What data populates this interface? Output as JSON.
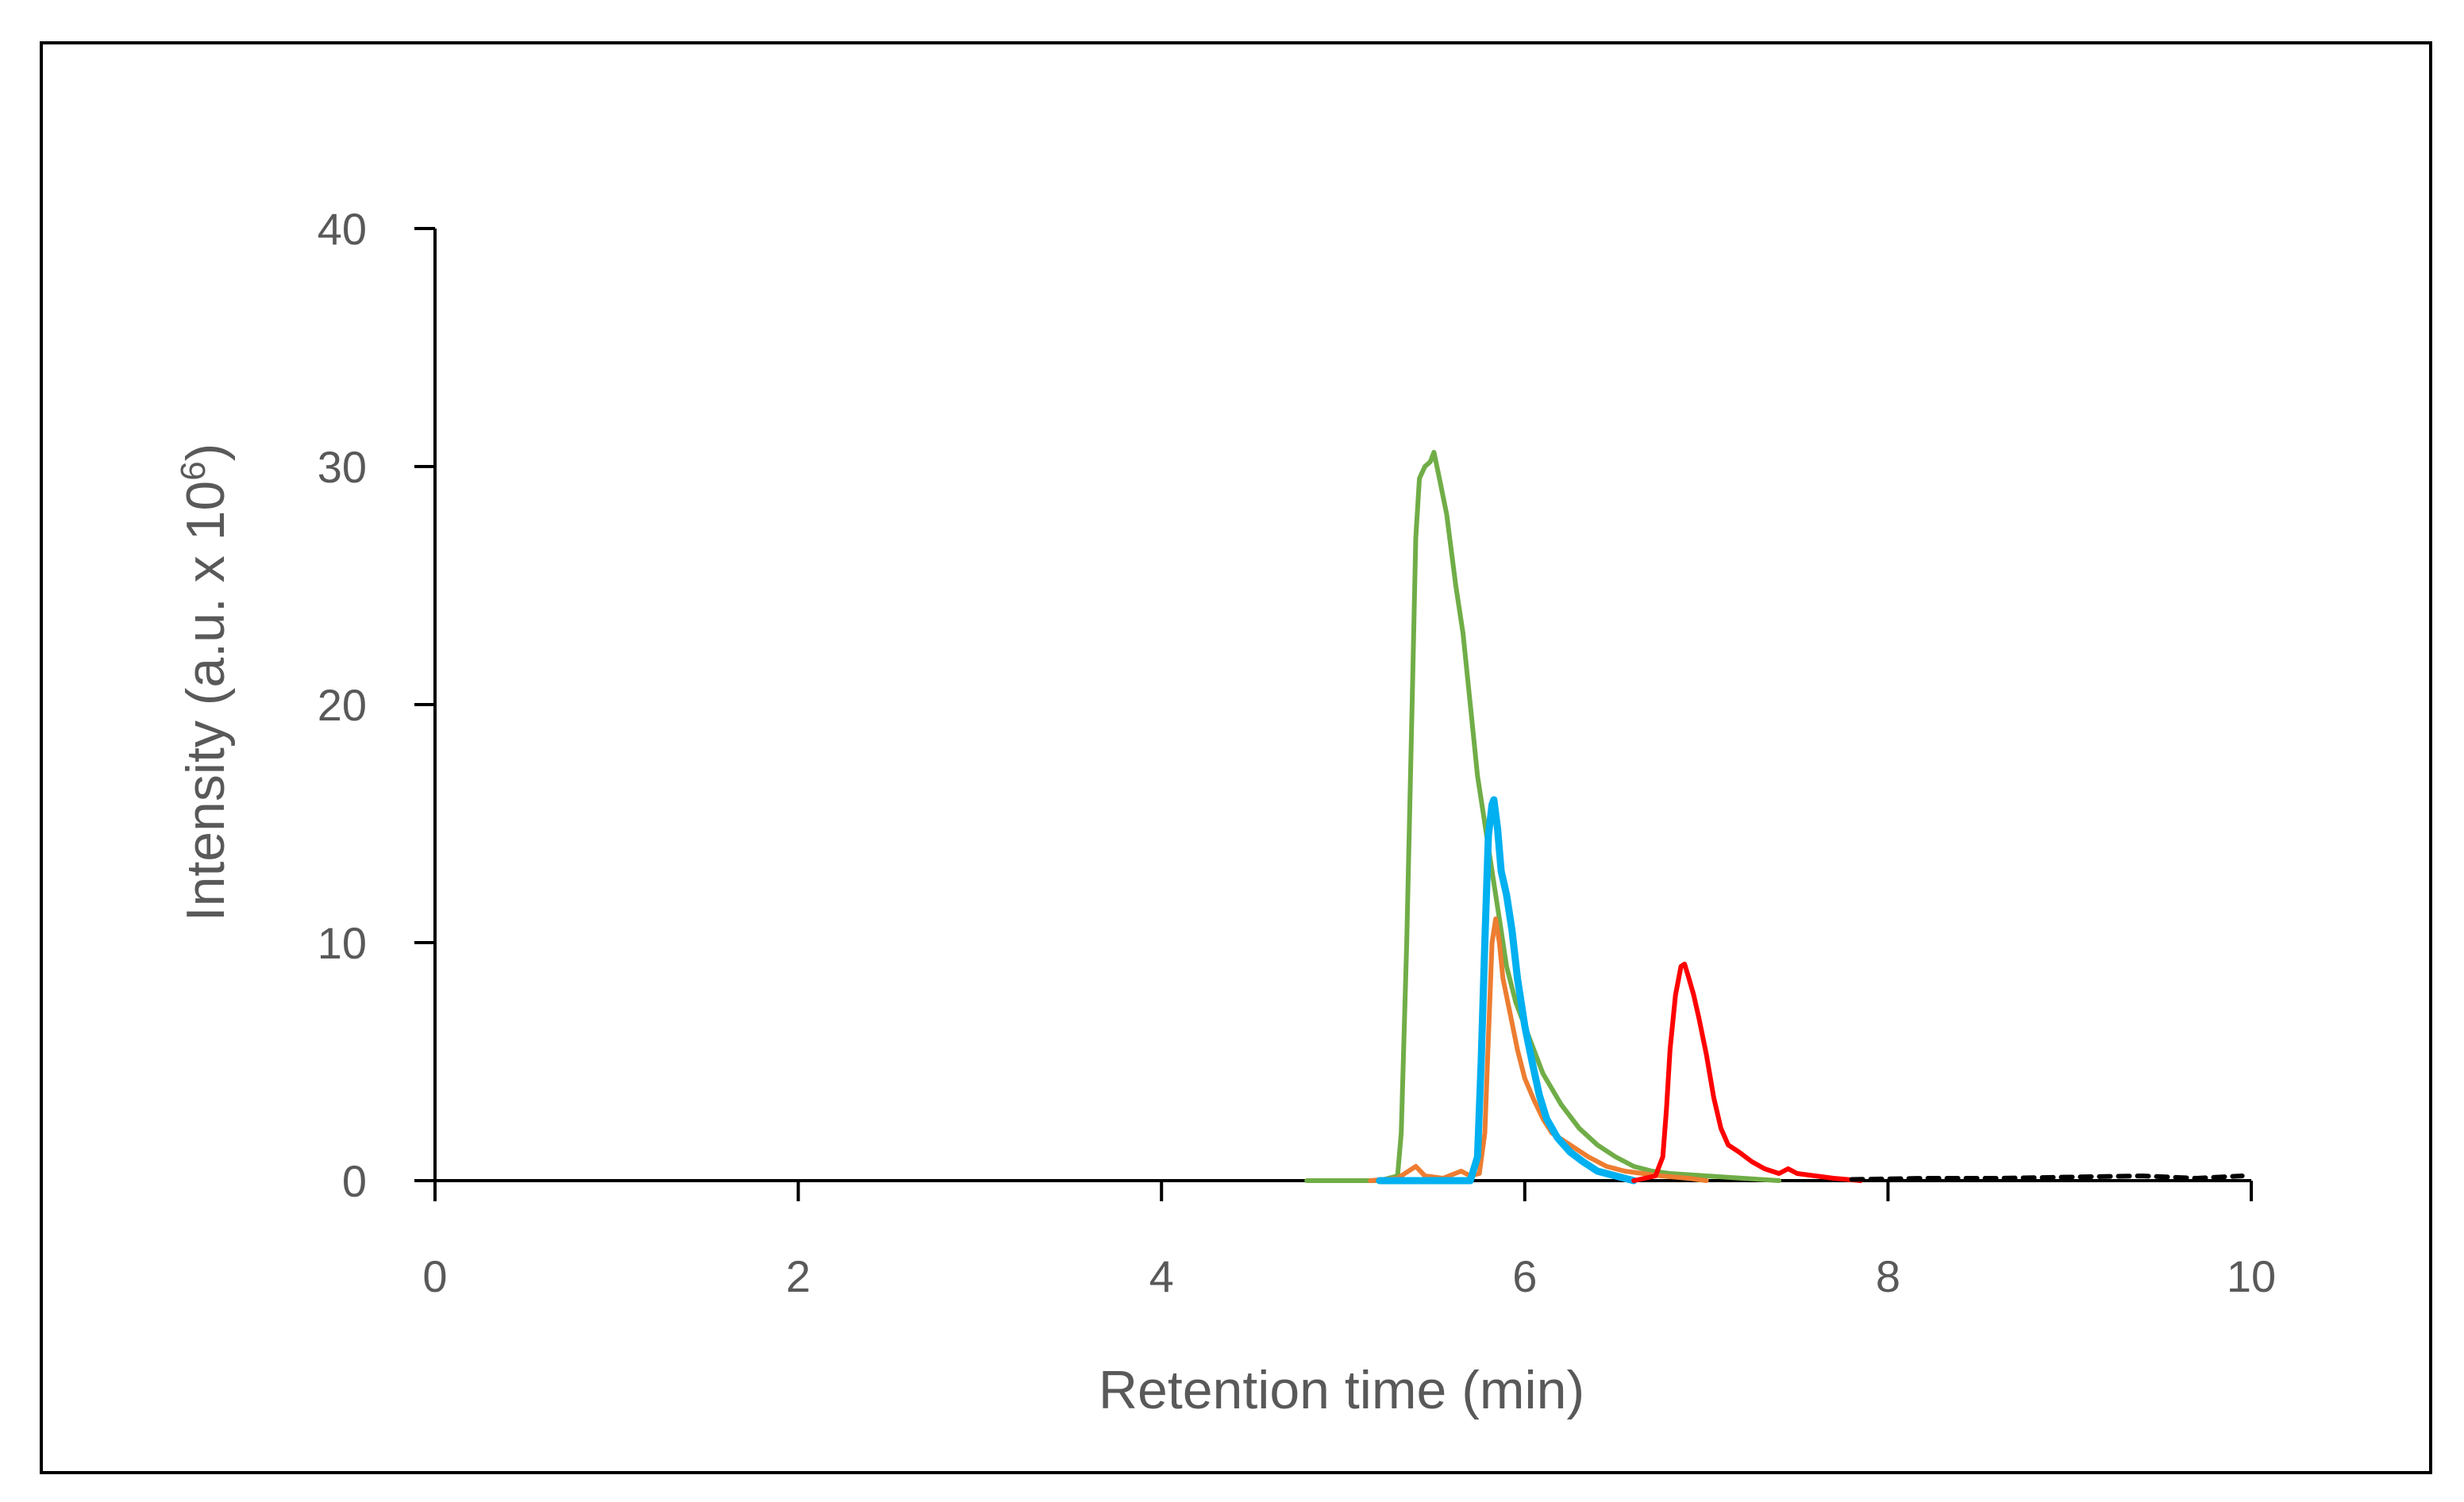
{
  "chart_data": {
    "type": "line",
    "xlabel": "Retention time (min)",
    "ylabel_main": "Intensity (a.u. x 10",
    "ylabel_sup": "6",
    "ylabel_end": ")",
    "xlim": [
      0,
      10
    ],
    "ylim": [
      0,
      40
    ],
    "x_ticks": [
      0,
      2,
      4,
      6,
      8,
      10
    ],
    "y_ticks": [
      0,
      10,
      20,
      30,
      40
    ],
    "grid": false,
    "legend": "none",
    "series": [
      {
        "color": "#70ad47",
        "points": [
          [
            4.8,
            0
          ],
          [
            5.2,
            0
          ],
          [
            5.3,
            0.2
          ],
          [
            5.32,
            2
          ],
          [
            5.35,
            10
          ],
          [
            5.38,
            20
          ],
          [
            5.4,
            27
          ],
          [
            5.42,
            29.5
          ],
          [
            5.45,
            30
          ],
          [
            5.48,
            30.2
          ],
          [
            5.5,
            30.6
          ],
          [
            5.53,
            29.5
          ],
          [
            5.57,
            28
          ],
          [
            5.62,
            25
          ],
          [
            5.66,
            23
          ],
          [
            5.7,
            20
          ],
          [
            5.74,
            17
          ],
          [
            5.78,
            15
          ],
          [
            5.82,
            13
          ],
          [
            5.86,
            11
          ],
          [
            5.9,
            9
          ],
          [
            5.95,
            7.5
          ],
          [
            6.0,
            6.5
          ],
          [
            6.05,
            5.5
          ],
          [
            6.1,
            4.5
          ],
          [
            6.2,
            3.2
          ],
          [
            6.3,
            2.2
          ],
          [
            6.4,
            1.5
          ],
          [
            6.5,
            1.0
          ],
          [
            6.6,
            0.6
          ],
          [
            6.7,
            0.4
          ],
          [
            6.8,
            0.3
          ],
          [
            7.0,
            0.2
          ],
          [
            7.2,
            0.1
          ],
          [
            7.4,
            0
          ]
        ]
      },
      {
        "color": "#ed7d31",
        "points": [
          [
            5.15,
            0
          ],
          [
            5.3,
            0.1
          ],
          [
            5.4,
            0.6
          ],
          [
            5.45,
            0.2
          ],
          [
            5.55,
            0.1
          ],
          [
            5.65,
            0.4
          ],
          [
            5.7,
            0.2
          ],
          [
            5.75,
            0.3
          ],
          [
            5.78,
            2
          ],
          [
            5.8,
            6
          ],
          [
            5.82,
            10
          ],
          [
            5.84,
            11
          ],
          [
            5.86,
            10
          ],
          [
            5.88,
            8.5
          ],
          [
            5.92,
            7
          ],
          [
            5.96,
            5.5
          ],
          [
            6.0,
            4.3
          ],
          [
            6.05,
            3.4
          ],
          [
            6.1,
            2.6
          ],
          [
            6.15,
            2.0
          ],
          [
            6.25,
            1.5
          ],
          [
            6.35,
            1.0
          ],
          [
            6.45,
            0.6
          ],
          [
            6.55,
            0.4
          ],
          [
            6.65,
            0.3
          ],
          [
            6.75,
            0.2
          ],
          [
            6.9,
            0.1
          ],
          [
            7.0,
            0
          ]
        ]
      },
      {
        "color": "#00b0f0",
        "points": [
          [
            5.2,
            0
          ],
          [
            5.5,
            0
          ],
          [
            5.7,
            0
          ],
          [
            5.74,
            1
          ],
          [
            5.76,
            5
          ],
          [
            5.78,
            10
          ],
          [
            5.8,
            14.5
          ],
          [
            5.82,
            15.8
          ],
          [
            5.83,
            16
          ],
          [
            5.85,
            14.8
          ],
          [
            5.87,
            13
          ],
          [
            5.9,
            12
          ],
          [
            5.93,
            10.5
          ],
          [
            5.96,
            8.5
          ],
          [
            6.0,
            6.5
          ],
          [
            6.04,
            5
          ],
          [
            6.08,
            3.6
          ],
          [
            6.12,
            2.6
          ],
          [
            6.18,
            1.8
          ],
          [
            6.25,
            1.2
          ],
          [
            6.32,
            0.8
          ],
          [
            6.4,
            0.4
          ],
          [
            6.5,
            0.2
          ],
          [
            6.6,
            0
          ]
        ]
      },
      {
        "color": "#ff0000",
        "points": [
          [
            6.6,
            0
          ],
          [
            6.72,
            0.2
          ],
          [
            6.76,
            1
          ],
          [
            6.78,
            3
          ],
          [
            6.8,
            5.5
          ],
          [
            6.83,
            7.8
          ],
          [
            6.86,
            9.0
          ],
          [
            6.88,
            9.1
          ],
          [
            6.9,
            8.6
          ],
          [
            6.93,
            7.8
          ],
          [
            6.96,
            6.8
          ],
          [
            7.0,
            5.3
          ],
          [
            7.04,
            3.5
          ],
          [
            7.08,
            2.2
          ],
          [
            7.12,
            1.5
          ],
          [
            7.18,
            1.2
          ],
          [
            7.25,
            0.8
          ],
          [
            7.32,
            0.5
          ],
          [
            7.4,
            0.3
          ],
          [
            7.45,
            0.5
          ],
          [
            7.5,
            0.3
          ],
          [
            7.6,
            0.2
          ],
          [
            7.7,
            0.1
          ],
          [
            7.85,
            0
          ]
        ]
      },
      {
        "color": "#000000",
        "dashed": true,
        "points": [
          [
            7.8,
            0.05
          ],
          [
            8.2,
            0.1
          ],
          [
            8.6,
            0.1
          ],
          [
            9.0,
            0.15
          ],
          [
            9.4,
            0.2
          ],
          [
            9.7,
            0.1
          ],
          [
            9.95,
            0.2
          ]
        ]
      }
    ]
  }
}
